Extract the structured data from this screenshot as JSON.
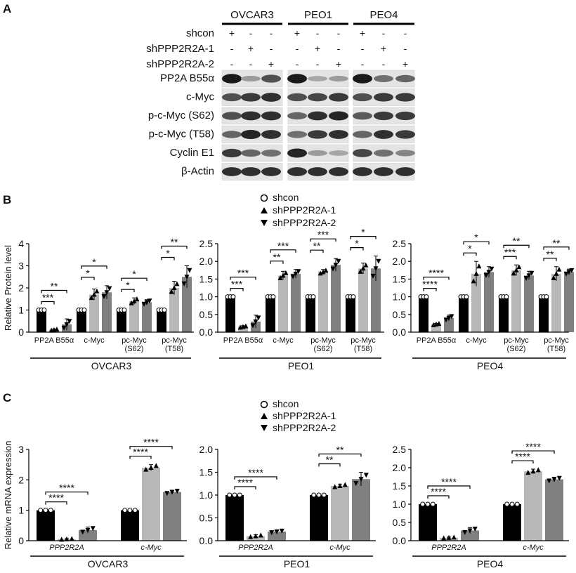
{
  "figure": {
    "panel_labels": [
      "A",
      "B",
      "C"
    ],
    "panel_a": {
      "cell_lines": [
        "OVCAR3",
        "PEO1",
        "PEO4"
      ],
      "conditions": [
        {
          "label": "shcon",
          "signs": [
            "+",
            "-",
            "-",
            "+",
            "-",
            "-",
            "+",
            "-",
            "-"
          ]
        },
        {
          "label": "shPPP2R2A-1",
          "signs": [
            "-",
            "+",
            "-",
            "-",
            "+",
            "-",
            "-",
            "+",
            "-"
          ]
        },
        {
          "label": "shPPP2R2A-2",
          "signs": [
            "-",
            "-",
            "+",
            "-",
            "-",
            "+",
            "-",
            "-",
            "+"
          ]
        }
      ],
      "blots": [
        {
          "label": "PP2A B55α",
          "intensity": [
            0.95,
            0.35,
            0.7,
            0.95,
            0.3,
            0.35,
            0.95,
            0.55,
            0.6
          ]
        },
        {
          "label": "c-Myc",
          "intensity": [
            0.7,
            0.8,
            0.85,
            0.7,
            0.75,
            0.8,
            0.7,
            0.8,
            0.8
          ]
        },
        {
          "label": "p-c-Myc (S62)",
          "intensity": [
            0.7,
            0.85,
            0.85,
            0.6,
            0.85,
            0.9,
            0.65,
            0.8,
            0.8
          ]
        },
        {
          "label": "p-c-Myc (T58)",
          "intensity": [
            0.6,
            0.9,
            0.85,
            0.55,
            0.8,
            0.85,
            0.6,
            0.85,
            0.8
          ]
        },
        {
          "label": "Cyclin E1",
          "intensity": [
            0.8,
            0.6,
            0.55,
            0.9,
            0.35,
            0.3,
            0.75,
            0.55,
            0.45
          ]
        },
        {
          "label": "β-Actin",
          "intensity": [
            0.85,
            0.85,
            0.85,
            0.85,
            0.85,
            0.85,
            0.85,
            0.85,
            0.85
          ]
        }
      ]
    },
    "legend": {
      "items": [
        "shcon",
        "shPPP2R2A-1",
        "shPPP2R2A-2"
      ]
    },
    "colors": {
      "shcon": "#000000",
      "sh1": "#b8b8b8",
      "sh2": "#808080"
    }
  },
  "chart_data": [
    {
      "panel": "B",
      "type": "bar",
      "title": "OVCAR3",
      "ylabel": "Relative Protein level",
      "ylim": [
        0,
        4
      ],
      "yticks": [
        "0",
        "1",
        "2",
        "3",
        "4"
      ],
      "categories": [
        "PP2A B55α",
        "c-Myc",
        "pc-Myc (S62)",
        "pc-Myc (T58)"
      ],
      "series": [
        {
          "name": "shcon",
          "values": [
            1.0,
            1.0,
            1.0,
            1.0
          ],
          "err": [
            0,
            0,
            0,
            0
          ]
        },
        {
          "name": "shPPP2R2A-1",
          "values": [
            0.1,
            1.7,
            1.4,
            2.0
          ],
          "err": [
            0.04,
            0.25,
            0.15,
            0.3
          ]
        },
        {
          "name": "shPPP2R2A-2",
          "values": [
            0.35,
            1.8,
            1.35,
            2.5
          ],
          "err": [
            0.25,
            0.3,
            0.12,
            0.5
          ]
        }
      ],
      "sig": [
        [
          "***",
          "**"
        ],
        [
          "*",
          "*"
        ],
        [
          "*",
          "*"
        ],
        [
          "*",
          "**"
        ]
      ]
    },
    {
      "panel": "B",
      "type": "bar",
      "title": "PEO1",
      "ylabel": "",
      "ylim": [
        0,
        2.5
      ],
      "yticks": [
        "0.0",
        "0.5",
        "1.0",
        "1.5",
        "2.0",
        "2.5"
      ],
      "categories": [
        "PP2A B55α",
        "c-Myc",
        "pc-Myc (S62)",
        "pc-Myc (T58)"
      ],
      "series": [
        {
          "name": "shcon",
          "values": [
            1.0,
            1.0,
            1.0,
            1.0
          ],
          "err": [
            0,
            0,
            0,
            0
          ]
        },
        {
          "name": "shPPP2R2A-1",
          "values": [
            0.15,
            1.6,
            1.7,
            1.8
          ],
          "err": [
            0.03,
            0.12,
            0.07,
            0.15
          ]
        },
        {
          "name": "shPPP2R2A-2",
          "values": [
            0.3,
            1.65,
            1.9,
            1.8
          ],
          "err": [
            0.18,
            0.12,
            0.18,
            0.35
          ]
        }
      ],
      "sig": [
        [
          "***",
          "***"
        ],
        [
          "**",
          "***"
        ],
        [
          "**",
          "***"
        ],
        [
          "*",
          "*"
        ]
      ]
    },
    {
      "panel": "B",
      "type": "bar",
      "title": "PEO4",
      "ylabel": "",
      "ylim": [
        0,
        2.5
      ],
      "yticks": [
        "0.0",
        "0.5",
        "1.0",
        "1.5",
        "2.0",
        "2.5"
      ],
      "categories": [
        "PP2A B55α",
        "c-Myc",
        "pc-Myc (S62)",
        "pc-Myc (T58)"
      ],
      "series": [
        {
          "name": "shcon",
          "values": [
            1.0,
            1.0,
            1.0,
            1.0
          ],
          "err": [
            0,
            0,
            0,
            0
          ]
        },
        {
          "name": "shPPP2R2A-1",
          "values": [
            0.22,
            1.65,
            1.75,
            1.65
          ],
          "err": [
            0.03,
            0.35,
            0.15,
            0.2
          ]
        },
        {
          "name": "shPPP2R2A-2",
          "values": [
            0.4,
            1.7,
            1.6,
            1.7
          ],
          "err": [
            0.08,
            0.15,
            0.12,
            0.08
          ]
        }
      ],
      "sig": [
        [
          "****",
          "****"
        ],
        [
          "*",
          "*"
        ],
        [
          "***",
          "**"
        ],
        [
          "**",
          "**"
        ]
      ]
    },
    {
      "panel": "C",
      "type": "bar",
      "title": "OVCAR3",
      "ylabel": "Relative mRNA expression",
      "ylim": [
        0,
        3
      ],
      "yticks": [
        "0",
        "1",
        "2",
        "3"
      ],
      "categories": [
        "PPP2R2A",
        "c-Myc"
      ],
      "series": [
        {
          "name": "shcon",
          "values": [
            1.0,
            1.0
          ],
          "err": [
            0,
            0
          ]
        },
        {
          "name": "shPPP2R2A-1",
          "values": [
            0.05,
            2.4
          ],
          "err": [
            0.02,
            0.1
          ]
        },
        {
          "name": "shPPP2R2A-2",
          "values": [
            0.35,
            1.6
          ],
          "err": [
            0.1,
            0.06
          ]
        }
      ],
      "sig": [
        [
          "****",
          "****"
        ],
        [
          "****",
          "****"
        ]
      ]
    },
    {
      "panel": "C",
      "type": "bar",
      "title": "PEO1",
      "ylabel": "",
      "ylim": [
        0,
        2.0
      ],
      "yticks": [
        "0.0",
        "0.5",
        "1.0",
        "1.5",
        "2.0"
      ],
      "categories": [
        "PPP2R2A",
        "c-Myc"
      ],
      "series": [
        {
          "name": "shcon",
          "values": [
            1.0,
            1.0
          ],
          "err": [
            0,
            0
          ]
        },
        {
          "name": "shPPP2R2A-1",
          "values": [
            0.1,
            1.2
          ],
          "err": [
            0.03,
            0.04
          ]
        },
        {
          "name": "shPPP2R2A-2",
          "values": [
            0.2,
            1.35
          ],
          "err": [
            0.03,
            0.15
          ]
        }
      ],
      "sig": [
        [
          "****",
          "****"
        ],
        [
          "**",
          "**"
        ]
      ]
    },
    {
      "panel": "C",
      "type": "bar",
      "title": "PEO4",
      "ylabel": "",
      "ylim": [
        0,
        2.5
      ],
      "yticks": [
        "0.0",
        "0.5",
        "1.0",
        "1.5",
        "2.0",
        "2.5"
      ],
      "categories": [
        "PPP2R2A",
        "c-Myc"
      ],
      "series": [
        {
          "name": "shcon",
          "values": [
            1.0,
            1.0
          ],
          "err": [
            0,
            0
          ]
        },
        {
          "name": "shPPP2R2A-1",
          "values": [
            0.08,
            1.9
          ],
          "err": [
            0.02,
            0.06
          ]
        },
        {
          "name": "shPPP2R2A-2",
          "values": [
            0.28,
            1.68
          ],
          "err": [
            0.08,
            0.06
          ]
        }
      ],
      "sig": [
        [
          "****",
          "****"
        ],
        [
          "****",
          "****"
        ]
      ]
    }
  ]
}
